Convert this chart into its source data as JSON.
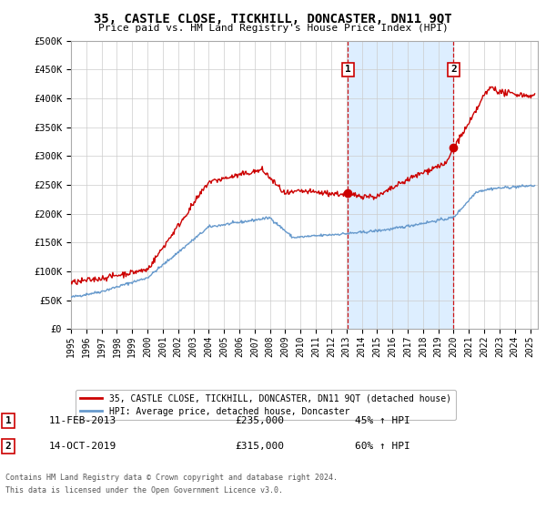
{
  "title": "35, CASTLE CLOSE, TICKHILL, DONCASTER, DN11 9QT",
  "subtitle": "Price paid vs. HM Land Registry's House Price Index (HPI)",
  "ylabel_ticks": [
    "£0",
    "£50K",
    "£100K",
    "£150K",
    "£200K",
    "£250K",
    "£300K",
    "£350K",
    "£400K",
    "£450K",
    "£500K"
  ],
  "ylim": [
    0,
    500000
  ],
  "xlim_start": 1995.0,
  "xlim_end": 2025.5,
  "transaction1_x": 2013.1,
  "transaction1_y": 235000,
  "transaction1_label": "1",
  "transaction1_date": "11-FEB-2013",
  "transaction1_price": "£235,000",
  "transaction1_hpi": "45% ↑ HPI",
  "transaction2_x": 2020.0,
  "transaction2_y": 315000,
  "transaction2_label": "2",
  "transaction2_date": "14-OCT-2019",
  "transaction2_price": "£315,000",
  "transaction2_hpi": "60% ↑ HPI",
  "shade_x1": 2013.1,
  "shade_x2": 2020.0,
  "line1_color": "#cc0000",
  "line2_color": "#6699cc",
  "shade_color": "#ddeeff",
  "grid_color": "#cccccc",
  "bg_color": "#ffffff",
  "legend_line1": "35, CASTLE CLOSE, TICKHILL, DONCASTER, DN11 9QT (detached house)",
  "legend_line2": "HPI: Average price, detached house, Doncaster",
  "footer1": "Contains HM Land Registry data © Crown copyright and database right 2024.",
  "footer2": "This data is licensed under the Open Government Licence v3.0.",
  "marker_color": "#cc0000",
  "annotation_box_color": "#cc0000"
}
